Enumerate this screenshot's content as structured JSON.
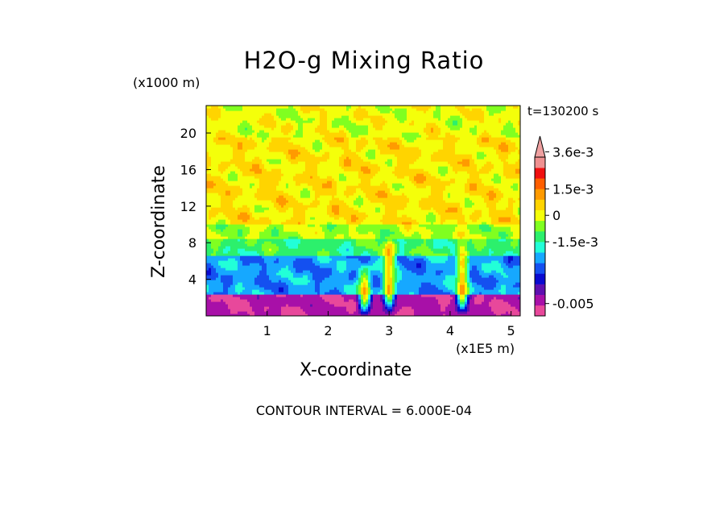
{
  "title": "H2O-g Mixing Ratio",
  "y_unit_label": "(x1000 m)",
  "time_label": "t=130200 s",
  "x_unit_label": "(x1E5 m)",
  "contour_interval_label": "CONTOUR INTERVAL = 6.000E-04",
  "chart_data": {
    "type": "heatmap",
    "title": "H2O-g Mixing Ratio",
    "xlabel": "X-coordinate",
    "ylabel": "Z-coordinate",
    "xlim": [
      0,
      5.15
    ],
    "ylim": [
      0,
      23
    ],
    "x_ticks": [
      1,
      2,
      3,
      4,
      5
    ],
    "y_ticks": [
      4,
      8,
      12,
      16,
      20
    ],
    "colorbar": {
      "labels": [
        {
          "text": "3.6e-3",
          "value": 0.0036
        },
        {
          "text": "1.5e-3",
          "value": 0.0015
        },
        {
          "text": "0",
          "value": 0
        },
        {
          "text": "-1.5e-3",
          "value": -0.0015
        },
        {
          "text": "-0.005",
          "value": -0.005
        }
      ],
      "colors": [
        "#e8489b",
        "#a810a8",
        "#5e10b0",
        "#0a0ad0",
        "#1450f0",
        "#16a8ff",
        "#22ffd8",
        "#2cf06c",
        "#80ff20",
        "#f4ff0a",
        "#ffd400",
        "#ff9a00",
        "#ff5e00",
        "#f01010",
        "#ef9090"
      ],
      "extend": "max"
    },
    "layers": [
      {
        "z_range": [
          0,
          2.5
        ],
        "value": -0.005,
        "description": "near-surface minimum"
      },
      {
        "z_range": [
          2.5,
          6.5
        ],
        "value": -0.0025
      },
      {
        "z_range": [
          6.5,
          8.5
        ],
        "value": -0.0012
      },
      {
        "z_range": [
          8.5,
          10
        ],
        "value": -0.0004
      },
      {
        "z_range": [
          10,
          19.5
        ],
        "value": 0.0003
      },
      {
        "z_range": [
          19.5,
          23
        ],
        "value": 0.0
      }
    ],
    "plumes": [
      {
        "x": 3.0,
        "z_top": 9.0,
        "max_value": 0.0025
      },
      {
        "x": 4.2,
        "z_top": 8.5,
        "max_value": 0.0025
      },
      {
        "x": 2.6,
        "z_top": 6.0,
        "max_value": 0.0015
      }
    ]
  }
}
